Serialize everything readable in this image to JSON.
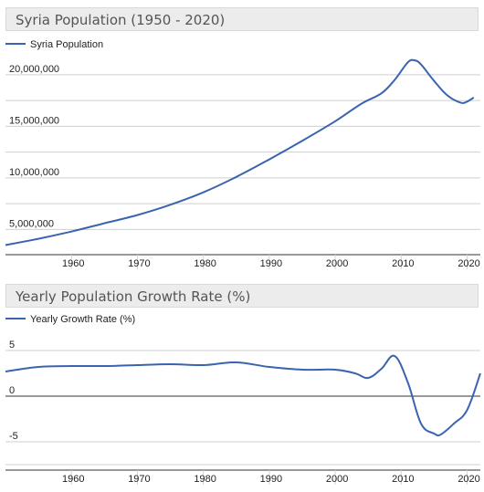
{
  "chart_data": [
    {
      "type": "line",
      "title": "Syria Population (1950 - 2020)",
      "xlabel": "",
      "ylabel": "",
      "legend": "top-left",
      "grid": true,
      "color": "#3a64b0",
      "xlim": [
        1950,
        2022
      ],
      "ylim": [
        3000000,
        23000000
      ],
      "x_ticks": [
        1960,
        1970,
        1980,
        1990,
        2000,
        2010,
        2020
      ],
      "y_ticks": [
        5000000,
        10000000,
        15000000,
        20000000
      ],
      "y_tick_labels": [
        "5,000,000",
        "10,000,000",
        "15,000,000",
        "20,000,000"
      ],
      "series": [
        {
          "name": "Syria Population",
          "x": [
            1950,
            1955,
            1960,
            1965,
            1970,
            1975,
            1980,
            1985,
            1990,
            1995,
            2000,
            2004,
            2007,
            2009,
            2011,
            2012,
            2013,
            2015,
            2017,
            2019,
            2020,
            2021
          ],
          "y": [
            3490000,
            4100000,
            4800000,
            5600000,
            6400000,
            7400000,
            8600000,
            10100000,
            11800000,
            13600000,
            15500000,
            17200000,
            18200000,
            19500000,
            21200000,
            21400000,
            21000000,
            19400000,
            18000000,
            17300000,
            17400000,
            17800000
          ]
        }
      ]
    },
    {
      "type": "line",
      "title": "Yearly Population Growth Rate (%)",
      "xlabel": "",
      "ylabel": "",
      "legend": "top-left",
      "grid": true,
      "color": "#3a64b0",
      "xlim": [
        1950,
        2022
      ],
      "ylim": [
        -10,
        10
      ],
      "x_ticks": [
        1960,
        1970,
        1980,
        1990,
        2000,
        2010,
        2020
      ],
      "y_ticks": [
        5,
        0,
        -5
      ],
      "y_tick_labels": [
        "5",
        "0",
        "-5"
      ],
      "series": [
        {
          "name": "Yearly Growth Rate (%)",
          "x": [
            1950,
            1955,
            1960,
            1965,
            1970,
            1975,
            1980,
            1985,
            1990,
            1995,
            2000,
            2003,
            2005,
            2007,
            2009,
            2011,
            2013,
            2015,
            2016,
            2018,
            2020,
            2022
          ],
          "y": [
            2.7,
            3.2,
            3.3,
            3.3,
            3.4,
            3.5,
            3.4,
            3.7,
            3.2,
            2.9,
            2.9,
            2.5,
            2.0,
            3.0,
            4.4,
            1.5,
            -3.0,
            -4.1,
            -4.2,
            -3.0,
            -1.5,
            2.5
          ]
        }
      ]
    }
  ]
}
